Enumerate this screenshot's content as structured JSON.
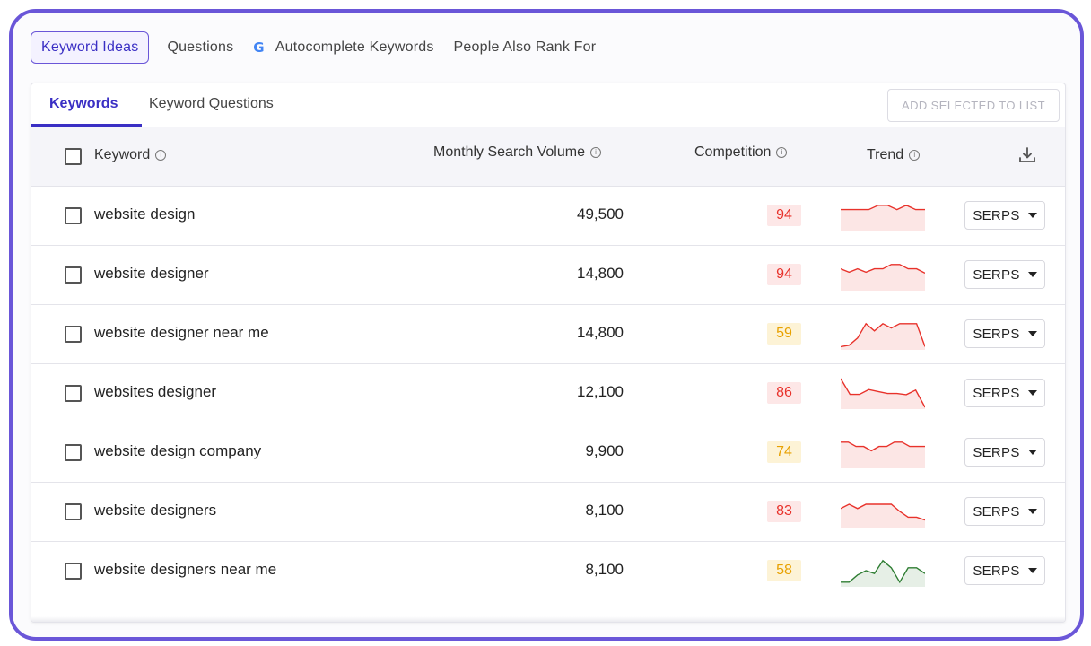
{
  "top_tabs": [
    {
      "label": "Keyword Ideas",
      "active": true
    },
    {
      "label": "Questions",
      "active": false
    },
    {
      "label": "Autocomplete Keywords",
      "active": false,
      "icon": "google-g-icon"
    },
    {
      "label": "People Also Rank For",
      "active": false
    }
  ],
  "sub_tabs": [
    {
      "label": "Keywords",
      "active": true
    },
    {
      "label": "Keyword Questions",
      "active": false
    }
  ],
  "add_button_label": "ADD SELECTED TO LIST",
  "columns": {
    "keyword": "Keyword",
    "volume": "Monthly Search Volume",
    "competition": "Competition",
    "trend": "Trend",
    "download_icon": "download-icon"
  },
  "colors": {
    "accent": "#3a2fc4",
    "frame": "#6a56d8",
    "high_comp_text": "#e8322b",
    "high_comp_bg": "#fde7e7",
    "mid_comp_text": "#e8a100",
    "mid_comp_bg": "#fdf3d6",
    "trend_red": "#e8322b",
    "trend_green": "#2e7d32"
  },
  "rows": [
    {
      "keyword": "website design",
      "volume": "49,500",
      "competition": "94",
      "level": "high",
      "trend_color": "red",
      "trend": [
        0.7,
        0.7,
        0.7,
        0.7,
        0.85,
        0.85,
        0.7,
        0.85,
        0.7,
        0.7
      ]
    },
    {
      "keyword": "website designer",
      "volume": "14,800",
      "competition": "94",
      "level": "high",
      "trend_color": "red",
      "trend": [
        0.7,
        0.58,
        0.7,
        0.58,
        0.7,
        0.7,
        0.85,
        0.85,
        0.7,
        0.7,
        0.55
      ]
    },
    {
      "keyword": "website designer near me",
      "volume": "14,800",
      "competition": "59",
      "level": "mid",
      "trend_color": "red",
      "trend": [
        0.05,
        0.1,
        0.35,
        0.85,
        0.6,
        0.85,
        0.7,
        0.85,
        0.85,
        0.85,
        0.05
      ]
    },
    {
      "keyword": "websites designer",
      "volume": "12,100",
      "competition": "86",
      "level": "high",
      "trend_color": "red",
      "trend": [
        1.0,
        0.45,
        0.45,
        0.62,
        0.55,
        0.48,
        0.48,
        0.44,
        0.6,
        0.0
      ]
    },
    {
      "keyword": "website design company",
      "volume": "9,900",
      "competition": "74",
      "level": "mid",
      "trend_color": "red",
      "trend": [
        0.85,
        0.85,
        0.7,
        0.7,
        0.55,
        0.7,
        0.7,
        0.85,
        0.85,
        0.7,
        0.7,
        0.7
      ]
    },
    {
      "keyword": "website designers",
      "volume": "8,100",
      "competition": "83",
      "level": "high",
      "trend_color": "red",
      "trend": [
        0.6,
        0.75,
        0.6,
        0.75,
        0.75,
        0.75,
        0.75,
        0.5,
        0.3,
        0.3,
        0.2
      ]
    },
    {
      "keyword": "website designers near me",
      "volume": "8,100",
      "competition": "58",
      "level": "mid",
      "trend_color": "green",
      "trend": [
        0.1,
        0.1,
        0.35,
        0.5,
        0.4,
        0.85,
        0.6,
        0.1,
        0.6,
        0.6,
        0.4
      ]
    }
  ],
  "serps_label": "SERPS"
}
